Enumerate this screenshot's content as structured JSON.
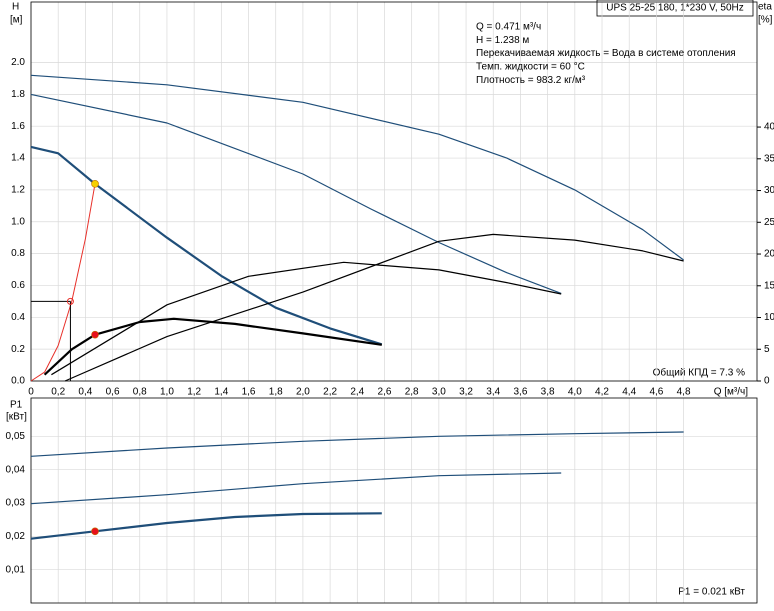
{
  "chart_data": [
    {
      "type": "line",
      "title": "UPS 25-25 180, 1*230 V, 50Hz",
      "y_label": "H",
      "y_unit": "[м]",
      "y2_label": "eta",
      "y2_unit": "[%]",
      "x_label": "Q [м³/ч]",
      "info": [
        "Q = 0.471 м³/ч",
        "H = 1.238 м",
        "Перекачиваемая жидкость = Вода в системе отопления",
        "Темп. жидкости = 60 °C",
        "Плотность = 983.2 кг/м³"
      ],
      "efficiency_label": "Общий КПД = 7.3 %",
      "grid": true,
      "xlim": [
        0,
        5.34
      ],
      "ylim": [
        0,
        2.38
      ],
      "y2lim": [
        0,
        59.7
      ],
      "xticks": [
        0,
        {
          "value": 0.2,
          "label": "0,2"
        },
        {
          "value": 0.4,
          "label": "0,4"
        },
        {
          "value": 0.6,
          "label": "0,6"
        },
        {
          "value": 0.8,
          "label": "0,8"
        },
        {
          "value": 1,
          "label": "1,0"
        },
        {
          "value": 1.2,
          "label": "1,2"
        },
        {
          "value": 1.4,
          "label": "1,4"
        },
        {
          "value": 1.6,
          "label": "1,6"
        },
        {
          "value": 1.8,
          "label": "1,8"
        },
        {
          "value": 2,
          "label": "2,0"
        },
        {
          "value": 2.2,
          "label": "2,2"
        },
        {
          "value": 2.4,
          "label": "2,4"
        },
        {
          "value": 2.6,
          "label": "2,6"
        },
        {
          "value": 2.8,
          "label": "2,8"
        },
        {
          "value": 3,
          "label": "3,0"
        },
        {
          "value": 3.2,
          "label": "3,2"
        },
        {
          "value": 3.4,
          "label": "3,4"
        },
        {
          "value": 3.6,
          "label": "3,6"
        },
        {
          "value": 3.8,
          "label": "3,8"
        },
        {
          "value": 4,
          "label": "4,0"
        },
        {
          "value": 4.2,
          "label": "4,2"
        },
        {
          "value": 4.4,
          "label": "4,4"
        },
        {
          "value": 4.6,
          "label": "4,6"
        },
        {
          "value": 4.8,
          "label": "4,8"
        }
      ],
      "yticks": [
        {
          "value": 0,
          "label": "0.0"
        },
        0.2,
        0.4,
        0.6,
        0.8,
        {
          "value": 1,
          "label": "1.0"
        },
        1.2,
        1.4,
        1.6,
        1.8,
        {
          "value": 2,
          "label": "2.0"
        }
      ],
      "y2ticks": [
        0,
        5,
        10,
        15,
        20,
        25,
        30,
        35,
        40
      ],
      "series": [
        {
          "color": "#1f4e79",
          "width": 1.2,
          "x": [
            0,
            1,
            2,
            3,
            3.5,
            4,
            4.5,
            4.8
          ],
          "values": [
            1.92,
            1.86,
            1.75,
            1.55,
            1.4,
            1.2,
            0.95,
            0.76
          ]
        },
        {
          "color": "#1f4e79",
          "width": 1.2,
          "x": [
            0,
            1,
            2,
            2.5,
            3,
            3.5,
            3.9
          ],
          "values": [
            1.8,
            1.62,
            1.3,
            1.08,
            0.87,
            0.68,
            0.55
          ]
        },
        {
          "color": "#1f4e79",
          "width": 2.2,
          "x": [
            0,
            0.2,
            0.471,
            1,
            1.4,
            1.8,
            2.2,
            2.58
          ],
          "values": [
            1.47,
            1.43,
            1.238,
            0.9,
            0.66,
            0.46,
            0.33,
            0.23
          ]
        },
        {
          "color": "#000000",
          "width": 1.2,
          "axis": "y2",
          "x": [
            0.25,
            1,
            2,
            3,
            3.4,
            4,
            4.5,
            4.8
          ],
          "values": [
            0,
            7,
            14,
            22,
            23.1,
            22.2,
            20.5,
            18.9
          ]
        },
        {
          "color": "#000000",
          "width": 1.2,
          "axis": "y2",
          "x": [
            0.15,
            1,
            1.6,
            2.3,
            3,
            3.5,
            3.9
          ],
          "values": [
            1,
            12,
            16.5,
            18.7,
            17.5,
            15.5,
            13.7
          ]
        },
        {
          "color": "#000000",
          "width": 2.2,
          "axis": "y2",
          "x": [
            0.1,
            0.3,
            0.471,
            0.8,
            1.05,
            1.5,
            2,
            2.58
          ],
          "values": [
            1,
            5,
            7.3,
            9.3,
            9.8,
            9,
            7.5,
            5.7
          ]
        },
        {
          "color": "#e8302a",
          "width": 1,
          "x": [
            0,
            0.1,
            0.2,
            0.3,
            0.4,
            0.471
          ],
          "values": [
            0,
            0.056,
            0.223,
            0.502,
            0.893,
            1.238
          ]
        },
        {
          "color": "#e8302a",
          "marker": "ring",
          "drop": true,
          "x": [
            0.29
          ],
          "values": [
            0.5
          ]
        },
        {
          "color": "#f5d000",
          "marker": "dot",
          "x": [
            0.471
          ],
          "values": [
            1.238
          ]
        },
        {
          "color": "#e8101a",
          "marker": "dot",
          "axis": "y2",
          "x": [
            0.471
          ],
          "values": [
            7.3
          ]
        }
      ]
    },
    {
      "type": "line",
      "y_label": "P1",
      "y_unit": "[кВт]",
      "power_label": "P1 = 0.021 кВт",
      "grid": true,
      "xlim": [
        0,
        5.34
      ],
      "ylim": [
        0,
        0.0615
      ],
      "yticks": [
        {
          "value": 0.01,
          "label": "0,01"
        },
        {
          "value": 0.02,
          "label": "0,02"
        },
        {
          "value": 0.03,
          "label": "0,03"
        },
        {
          "value": 0.04,
          "label": "0,04"
        },
        {
          "value": 0.05,
          "label": "0,05"
        }
      ],
      "series": [
        {
          "color": "#1f4e79",
          "width": 1.2,
          "x": [
            0,
            1,
            2,
            3,
            4,
            4.8
          ],
          "values": [
            0.044,
            0.0465,
            0.0485,
            0.05,
            0.0508,
            0.0513
          ]
        },
        {
          "color": "#1f4e79",
          "width": 1.2,
          "x": [
            0,
            1,
            2,
            3,
            3.9
          ],
          "values": [
            0.0298,
            0.0325,
            0.0358,
            0.0382,
            0.039
          ]
        },
        {
          "color": "#1f4e79",
          "width": 2.2,
          "x": [
            0,
            0.471,
            1,
            1.5,
            2,
            2.58
          ],
          "values": [
            0.0193,
            0.0215,
            0.024,
            0.0258,
            0.0267,
            0.0269
          ]
        },
        {
          "color": "#e8101a",
          "marker": "dot",
          "x": [
            0.471
          ],
          "values": [
            0.0215
          ]
        }
      ]
    }
  ]
}
